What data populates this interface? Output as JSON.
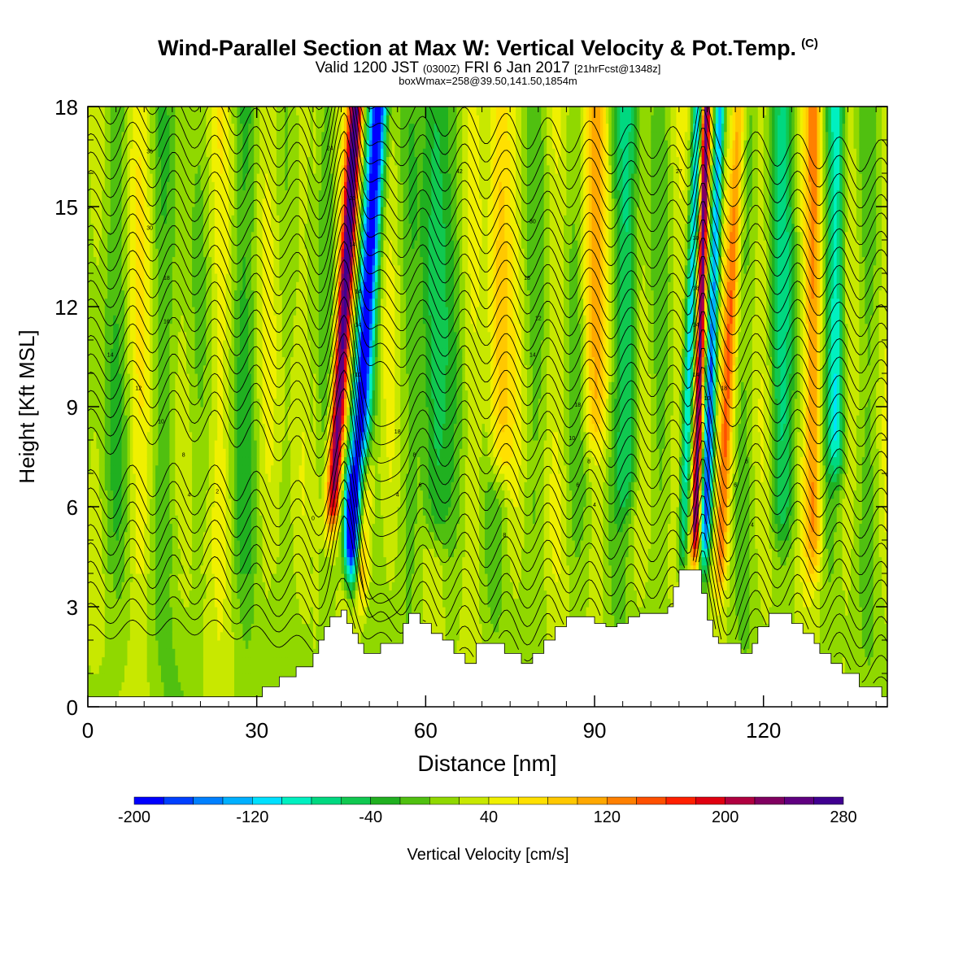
{
  "header": {
    "title": "Wind-Parallel Section at Max W: Vertical Velocity & Pot.Temp.",
    "copyright": "(C)",
    "subtitle_main": "Valid 1200 JST",
    "subtitle_utc": "(0300Z)",
    "subtitle_date": "FRI 6 Jan 2017",
    "subtitle_fcst": "[21hrFcst@1348z]",
    "subtitle2": "boxWmax=258@39.50,141.50,1854m"
  },
  "chart_data": {
    "type": "heatmap",
    "title": "Wind-Parallel Section at Max W: Vertical Velocity & Pot.Temp.",
    "xlabel": "Distance [nm]",
    "ylabel": "Height [Kft MSL]",
    "xlim": [
      0,
      142
    ],
    "ylim": [
      0,
      18
    ],
    "x_ticks": [
      0,
      30,
      60,
      90,
      120
    ],
    "y_ticks": [
      0,
      3,
      6,
      9,
      12,
      15,
      18
    ],
    "x_tick_labels": [
      "0",
      "30",
      "60",
      "90",
      "120"
    ],
    "y_tick_labels": [
      "0",
      "3",
      "6",
      "9",
      "12",
      "15",
      "18"
    ],
    "colorbar": {
      "label": "Vertical Velocity [cm/s]",
      "min": -200,
      "max": 280,
      "step": 20,
      "tick_values": [
        -200,
        -120,
        -40,
        40,
        120,
        200,
        280
      ],
      "tick_labels": [
        "-200",
        "-120",
        "-40",
        "40",
        "120",
        "200",
        "280"
      ],
      "colors": [
        "#0000ff",
        "#0040ff",
        "#0080ff",
        "#00b0ff",
        "#00e0ff",
        "#00f0c0",
        "#00d880",
        "#10c850",
        "#20b020",
        "#50c010",
        "#90d800",
        "#c8e800",
        "#f0f000",
        "#ffe000",
        "#ffc800",
        "#ffa800",
        "#ff8000",
        "#ff5000",
        "#ff2000",
        "#e00010",
        "#b00040",
        "#800060",
        "#600080",
        "#400090"
      ]
    },
    "terrain": [
      [
        0,
        0.3
      ],
      [
        30,
        0.3
      ],
      [
        31,
        0.6
      ],
      [
        34,
        0.9
      ],
      [
        37,
        1.2
      ],
      [
        40,
        1.6
      ],
      [
        41,
        2.0
      ],
      [
        42,
        2.4
      ],
      [
        43,
        2.7
      ],
      [
        45,
        2.9
      ],
      [
        46,
        2.5
      ],
      [
        47,
        2.2
      ],
      [
        48,
        1.9
      ],
      [
        49,
        1.6
      ],
      [
        52,
        1.9
      ],
      [
        54,
        1.9
      ],
      [
        56,
        2.5
      ],
      [
        57,
        2.8
      ],
      [
        59,
        2.5
      ],
      [
        61,
        2.2
      ],
      [
        63,
        2.0
      ],
      [
        65,
        1.6
      ],
      [
        67,
        1.3
      ],
      [
        69,
        1.9
      ],
      [
        72,
        1.9
      ],
      [
        74,
        1.6
      ],
      [
        77,
        1.3
      ],
      [
        79,
        1.6
      ],
      [
        81,
        2.0
      ],
      [
        83,
        2.4
      ],
      [
        85,
        2.7
      ],
      [
        88,
        2.7
      ],
      [
        90,
        2.5
      ],
      [
        92,
        2.4
      ],
      [
        94,
        2.5
      ],
      [
        96,
        2.7
      ],
      [
        98,
        2.8
      ],
      [
        100,
        2.8
      ],
      [
        103,
        3.0
      ],
      [
        104,
        3.6
      ],
      [
        105,
        4.1
      ],
      [
        108,
        4.1
      ],
      [
        109,
        3.4
      ],
      [
        110,
        2.6
      ],
      [
        111,
        2.1
      ],
      [
        112,
        1.9
      ],
      [
        114,
        1.9
      ],
      [
        116,
        1.6
      ],
      [
        118,
        1.9
      ],
      [
        119,
        2.4
      ],
      [
        121,
        2.8
      ],
      [
        123,
        2.8
      ],
      [
        125,
        2.5
      ],
      [
        127,
        2.2
      ],
      [
        129,
        1.9
      ],
      [
        130,
        1.6
      ],
      [
        132,
        1.3
      ],
      [
        134,
        1.0
      ],
      [
        137,
        0.6
      ],
      [
        140,
        0.6
      ],
      [
        141,
        0.3
      ],
      [
        142,
        0.3
      ]
    ],
    "contour_labels": [
      {
        "x": 11,
        "y": 16.6,
        "text": "36"
      },
      {
        "x": 11,
        "y": 14.3,
        "text": "30"
      },
      {
        "x": 14,
        "y": 12.8,
        "text": "18"
      },
      {
        "x": 14,
        "y": 11.5,
        "text": "16"
      },
      {
        "x": 4,
        "y": 10.5,
        "text": "14"
      },
      {
        "x": 9,
        "y": 9.5,
        "text": "12"
      },
      {
        "x": 13,
        "y": 8.5,
        "text": "10"
      },
      {
        "x": 17,
        "y": 7.5,
        "text": "8"
      },
      {
        "x": 18,
        "y": 6.3,
        "text": "4"
      },
      {
        "x": 23,
        "y": 6.4,
        "text": "2"
      },
      {
        "x": 40,
        "y": 5.6,
        "text": "0"
      },
      {
        "x": 43,
        "y": 16.7,
        "text": "24"
      },
      {
        "x": 47,
        "y": 15.2,
        "text": "20"
      },
      {
        "x": 47,
        "y": 13.8,
        "text": "14"
      },
      {
        "x": 48,
        "y": 12.4,
        "text": "14"
      },
      {
        "x": 48,
        "y": 11.4,
        "text": "14"
      },
      {
        "x": 48,
        "y": 9.9,
        "text": "10"
      },
      {
        "x": 55,
        "y": 8.2,
        "text": "18"
      },
      {
        "x": 58,
        "y": 7.5,
        "text": "8"
      },
      {
        "x": 59,
        "y": 6.6,
        "text": "6"
      },
      {
        "x": 55,
        "y": 6.3,
        "text": "4"
      },
      {
        "x": 66,
        "y": 16.0,
        "text": "42"
      },
      {
        "x": 79,
        "y": 14.5,
        "text": "30"
      },
      {
        "x": 78,
        "y": 12.8,
        "text": "18"
      },
      {
        "x": 80,
        "y": 11.6,
        "text": "12"
      },
      {
        "x": 79,
        "y": 10.5,
        "text": "14"
      },
      {
        "x": 87,
        "y": 9.0,
        "text": "18"
      },
      {
        "x": 86,
        "y": 8.0,
        "text": "10"
      },
      {
        "x": 89,
        "y": 7.3,
        "text": "8"
      },
      {
        "x": 87,
        "y": 6.6,
        "text": "6"
      },
      {
        "x": 90,
        "y": 6.0,
        "text": "4"
      },
      {
        "x": 74,
        "y": 5.1,
        "text": "8"
      },
      {
        "x": 105,
        "y": 16.0,
        "text": "27"
      },
      {
        "x": 108,
        "y": 14.0,
        "text": "30"
      },
      {
        "x": 108,
        "y": 12.5,
        "text": "18"
      },
      {
        "x": 108,
        "y": 11.4,
        "text": "14"
      },
      {
        "x": 108,
        "y": 9.9,
        "text": "14"
      },
      {
        "x": 110,
        "y": 9.2,
        "text": "10"
      },
      {
        "x": 113,
        "y": 9.5,
        "text": "18"
      },
      {
        "x": 117,
        "y": 7.3,
        "text": "8"
      },
      {
        "x": 115,
        "y": 6.6,
        "text": "6"
      },
      {
        "x": 118,
        "y": 5.4,
        "text": "4"
      }
    ]
  }
}
